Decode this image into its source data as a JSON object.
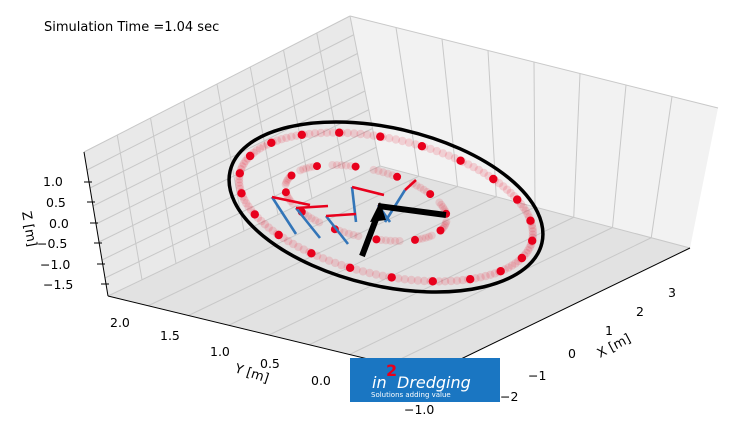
{
  "sim_time_label": "Simulation Time =1.04 sec",
  "chart_data": {
    "type": "3d-trajectory",
    "title": "",
    "xlabel": "X [m]",
    "ylabel": "Y [m]",
    "zlabel": "Z [m]",
    "x_ticks": [
      "−2",
      "−1",
      "0",
      "1",
      "2",
      "3"
    ],
    "y_ticks": [
      "−1.0",
      "0.0",
      "0.5",
      "1.0",
      "1.5",
      "2.0"
    ],
    "z_ticks": [
      "1.0",
      "0.5",
      "0.0",
      "−0.5",
      "−1.0",
      "−1.5"
    ],
    "xlim": [
      -2,
      3.5
    ],
    "ylim": [
      -1.2,
      2.2
    ],
    "zlim": [
      -1.6,
      1.2
    ],
    "grid": true,
    "colors": {
      "particles": "#e8001c",
      "velocity_vectors": "#3375b8",
      "force_vectors": "#e8001c",
      "ellipse": "#000000",
      "logo_background": "#1a76c2"
    }
  },
  "logo": {
    "prefix": "in",
    "superscript": "2",
    "word": "Dredging",
    "tagline": "Solutions adding value"
  }
}
